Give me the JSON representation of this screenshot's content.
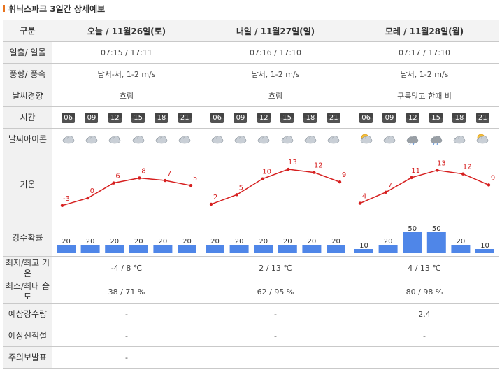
{
  "title": "휘닉스파크 3일간 상세예보",
  "labels": {
    "header": "구분",
    "sun": "일출/ 일몰",
    "wind": "풍향/ 풍속",
    "trend": "날씨경향",
    "time": "시간",
    "icon": "날씨아이콘",
    "temp": "기온",
    "precip": "강수확률",
    "minmax_temp": "최저/최고 기온",
    "minmax_hum": "최소/최대 습도",
    "rain": "예상강수량",
    "snow": "예상신적설",
    "warning": "주의보발표"
  },
  "days": [
    {
      "header": "오늘 / 11월26일(토)",
      "sun": "07:15 / 17:11",
      "wind": "남서-서, 1-2 m/s",
      "trend": "흐림",
      "times": [
        "06",
        "09",
        "12",
        "15",
        "18",
        "21"
      ],
      "icons": [
        "cloud-icon",
        "cloud-icon",
        "cloud-icon",
        "cloud-icon",
        "cloud-icon",
        "cloud-icon"
      ],
      "minmax_temp": "-4 / 8 ℃",
      "minmax_hum": "38 / 71 %",
      "rain": "-",
      "snow": "-",
      "warning": "-"
    },
    {
      "header": "내일 / 11월27일(일)",
      "sun": "07:16 / 17:10",
      "wind": "남서, 1-2 m/s",
      "trend": "흐림",
      "times": [
        "06",
        "09",
        "12",
        "15",
        "18",
        "21"
      ],
      "icons": [
        "cloud-icon",
        "cloud-icon",
        "cloud-icon",
        "cloud-icon",
        "cloud-icon",
        "cloud-icon"
      ],
      "minmax_temp": "2 / 13 ℃",
      "minmax_hum": "62 / 95 %",
      "rain": "-",
      "snow": "-",
      "warning": ""
    },
    {
      "header": "모레 / 11월28일(월)",
      "sun": "07:17 / 17:10",
      "wind": "남서, 1-2 m/s",
      "trend": "구름많고 한때 비",
      "times": [
        "06",
        "09",
        "12",
        "15",
        "18",
        "21"
      ],
      "icons": [
        "sun-cloud-icon",
        "cloud-icon",
        "rain-cloud-icon",
        "rain-cloud-icon",
        "cloud-icon",
        "sun-cloud-icon"
      ],
      "minmax_temp": "4 / 13 ℃",
      "minmax_hum": "80 / 98 %",
      "rain": "2.4",
      "snow": "-",
      "warning": ""
    }
  ],
  "chart_data": [
    {
      "type": "line",
      "x": [
        "06",
        "09",
        "12",
        "15",
        "18",
        "21"
      ],
      "series": [
        {
          "values": [
            -3,
            0,
            6,
            8,
            7,
            5
          ]
        }
      ],
      "ylim": [
        -5,
        14
      ],
      "color": "#d61f1f"
    },
    {
      "type": "line",
      "x": [
        "06",
        "09",
        "12",
        "15",
        "18",
        "21"
      ],
      "series": [
        {
          "values": [
            2,
            5,
            10,
            13,
            12,
            9
          ]
        }
      ],
      "ylim": [
        0,
        15
      ],
      "color": "#d61f1f"
    },
    {
      "type": "line",
      "x": [
        "06",
        "09",
        "12",
        "15",
        "18",
        "21"
      ],
      "series": [
        {
          "values": [
            4,
            7,
            11,
            13,
            12,
            9
          ]
        }
      ],
      "ylim": [
        2,
        15
      ],
      "color": "#d61f1f"
    },
    {
      "type": "bar",
      "categories": [
        "06",
        "09",
        "12",
        "15",
        "18",
        "21"
      ],
      "values": [
        20,
        20,
        20,
        20,
        20,
        20
      ],
      "ylim": [
        0,
        100
      ],
      "color": "#4f86e8"
    },
    {
      "type": "bar",
      "categories": [
        "06",
        "09",
        "12",
        "15",
        "18",
        "21"
      ],
      "values": [
        20,
        20,
        20,
        20,
        20,
        20
      ],
      "ylim": [
        0,
        100
      ],
      "color": "#4f86e8"
    },
    {
      "type": "bar",
      "categories": [
        "06",
        "09",
        "12",
        "15",
        "18",
        "21"
      ],
      "values": [
        10,
        20,
        50,
        50,
        20,
        10
      ],
      "ylim": [
        0,
        100
      ],
      "color": "#4f86e8"
    }
  ]
}
